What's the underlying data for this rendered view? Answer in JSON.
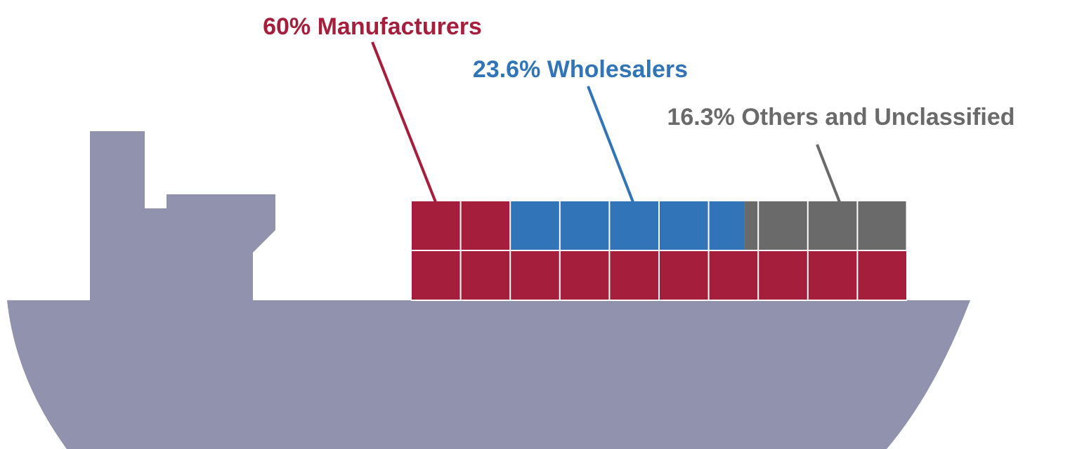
{
  "chart_data": {
    "type": "waffle",
    "series": [
      {
        "name": "Manufacturers",
        "color": "#a51f3d",
        "values": [
          60
        ],
        "value_labels": [
          "60%"
        ]
      },
      {
        "name": "Wholesalers",
        "color": "#3174b8",
        "values": [
          23.6
        ],
        "value_labels": [
          "23.6%"
        ]
      },
      {
        "name": "Others and Unclassified",
        "color": "#6a6a6a",
        "values": [
          16.3
        ],
        "value_labels": [
          "16.3%"
        ]
      }
    ]
  }
}
